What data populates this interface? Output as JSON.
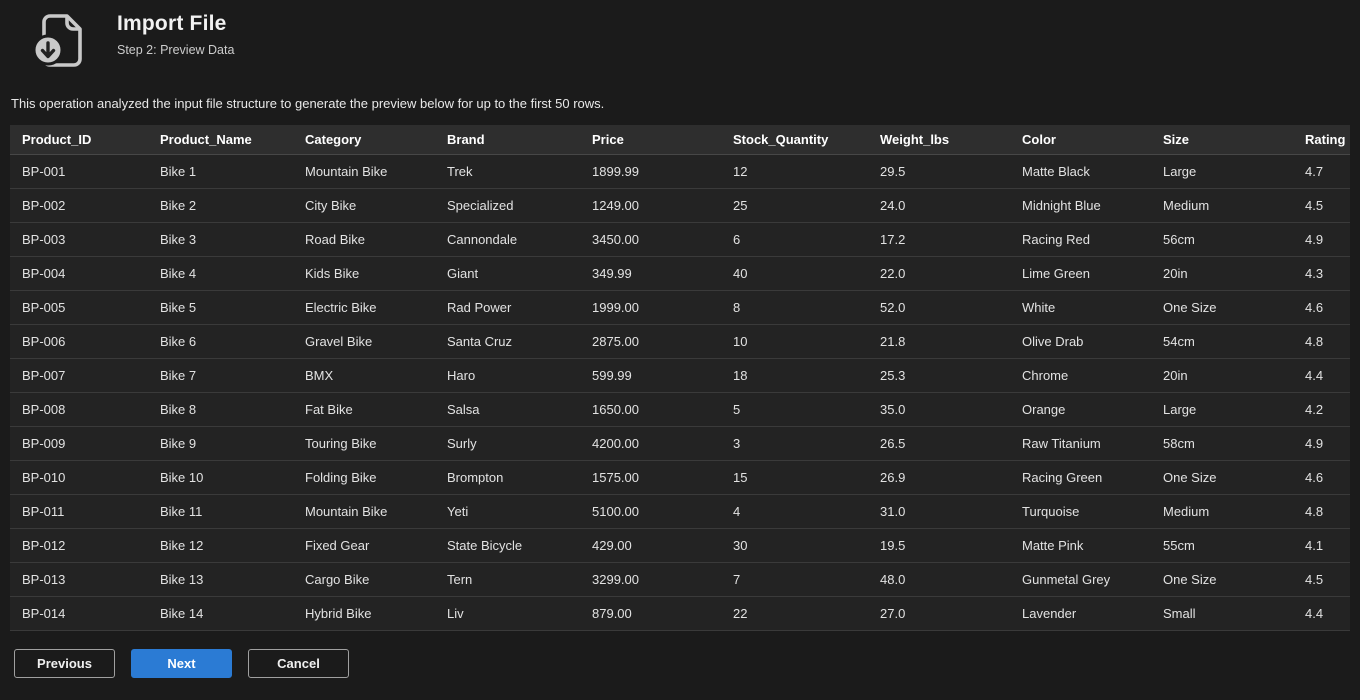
{
  "header": {
    "title": "Import File",
    "subtitle": "Step 2: Preview Data",
    "icon": "file-download-icon"
  },
  "description": "This operation analyzed the input file structure to generate the preview below for up to the first 50 rows.",
  "table": {
    "columns": [
      "Product_ID",
      "Product_Name",
      "Category",
      "Brand",
      "Price",
      "Stock_Quantity",
      "Weight_lbs",
      "Color",
      "Size",
      "Rating"
    ],
    "rows": [
      [
        "BP-001",
        "Bike 1",
        "Mountain Bike",
        "Trek",
        "1899.99",
        "12",
        "29.5",
        "Matte Black",
        "Large",
        "4.7"
      ],
      [
        "BP-002",
        "Bike 2",
        "City Bike",
        "Specialized",
        "1249.00",
        "25",
        "24.0",
        "Midnight Blue",
        "Medium",
        "4.5"
      ],
      [
        "BP-003",
        "Bike 3",
        "Road Bike",
        "Cannondale",
        "3450.00",
        "6",
        "17.2",
        "Racing Red",
        "56cm",
        "4.9"
      ],
      [
        "BP-004",
        "Bike 4",
        "Kids Bike",
        "Giant",
        "349.99",
        "40",
        "22.0",
        "Lime Green",
        "20in",
        "4.3"
      ],
      [
        "BP-005",
        "Bike 5",
        "Electric Bike",
        "Rad Power",
        "1999.00",
        "8",
        "52.0",
        "White",
        "One Size",
        "4.6"
      ],
      [
        "BP-006",
        "Bike 6",
        "Gravel Bike",
        "Santa Cruz",
        "2875.00",
        "10",
        "21.8",
        "Olive Drab",
        "54cm",
        "4.8"
      ],
      [
        "BP-007",
        "Bike 7",
        "BMX",
        "Haro",
        "599.99",
        "18",
        "25.3",
        "Chrome",
        "20in",
        "4.4"
      ],
      [
        "BP-008",
        "Bike 8",
        "Fat Bike",
        "Salsa",
        "1650.00",
        "5",
        "35.0",
        "Orange",
        "Large",
        "4.2"
      ],
      [
        "BP-009",
        "Bike 9",
        "Touring Bike",
        "Surly",
        "4200.00",
        "3",
        "26.5",
        "Raw Titanium",
        "58cm",
        "4.9"
      ],
      [
        "BP-010",
        "Bike 10",
        "Folding Bike",
        "Brompton",
        "1575.00",
        "15",
        "26.9",
        "Racing Green",
        "One Size",
        "4.6"
      ],
      [
        "BP-011",
        "Bike 11",
        "Mountain Bike",
        "Yeti",
        "5100.00",
        "4",
        "31.0",
        "Turquoise",
        "Medium",
        "4.8"
      ],
      [
        "BP-012",
        "Bike 12",
        "Fixed Gear",
        "State Bicycle",
        "429.00",
        "30",
        "19.5",
        "Matte Pink",
        "55cm",
        "4.1"
      ],
      [
        "BP-013",
        "Bike 13",
        "Cargo Bike",
        "Tern",
        "3299.00",
        "7",
        "48.0",
        "Gunmetal Grey",
        "One Size",
        "4.5"
      ],
      [
        "BP-014",
        "Bike 14",
        "Hybrid Bike",
        "Liv",
        "879.00",
        "22",
        "27.0",
        "Lavender",
        "Small",
        "4.4"
      ]
    ]
  },
  "footer": {
    "previous_label": "Previous",
    "next_label": "Next",
    "cancel_label": "Cancel"
  },
  "colors": {
    "accent_blue": "#2b7bd4",
    "page_background": "#1b1b1b",
    "table_header_background": "#2e2e2e",
    "table_row_background": "#232323"
  }
}
